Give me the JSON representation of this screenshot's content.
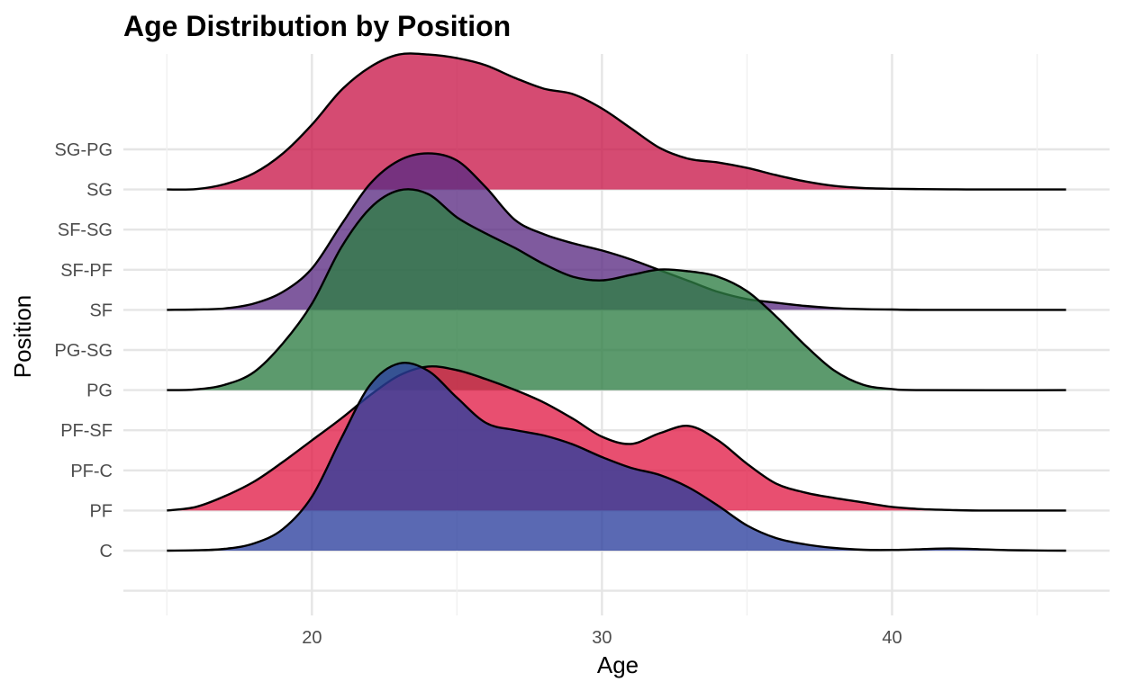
{
  "chart_data": {
    "type": "ridgeline",
    "title": "Age Distribution by Position",
    "xlabel": "Age",
    "ylabel": "Position",
    "xlim": [
      13.5,
      47.5
    ],
    "x_ticks": [
      20,
      30,
      40
    ],
    "x_tick_labels": [
      "20",
      "30",
      "40"
    ],
    "categories": [
      "C",
      "PF",
      "PF-C",
      "PF-SF",
      "PG",
      "PG-SG",
      "SF",
      "SF-PF",
      "SF-SG",
      "SG",
      "SG-PG"
    ],
    "grid": true,
    "series": [
      {
        "category": "SG",
        "color": "#C9184A",
        "density": [
          [
            15,
            0
          ],
          [
            16,
            0.002
          ],
          [
            17,
            0.03
          ],
          [
            18,
            0.09
          ],
          [
            19,
            0.2
          ],
          [
            20,
            0.36
          ],
          [
            21,
            0.55
          ],
          [
            22,
            0.68
          ],
          [
            23,
            0.75
          ],
          [
            24,
            0.75
          ],
          [
            25,
            0.73
          ],
          [
            26,
            0.69
          ],
          [
            27,
            0.62
          ],
          [
            28,
            0.56
          ],
          [
            29,
            0.53
          ],
          [
            30,
            0.45
          ],
          [
            31,
            0.34
          ],
          [
            32,
            0.23
          ],
          [
            33,
            0.17
          ],
          [
            34,
            0.15
          ],
          [
            35,
            0.12
          ],
          [
            36,
            0.08
          ],
          [
            37,
            0.045
          ],
          [
            38,
            0.02
          ],
          [
            39,
            0.008
          ],
          [
            40,
            0.004
          ],
          [
            41,
            0.002
          ],
          [
            42,
            0.001
          ],
          [
            43,
            0
          ],
          [
            46,
            0
          ]
        ]
      },
      {
        "category": "SF",
        "color": "#5B2C83",
        "density": [
          [
            15,
            0
          ],
          [
            16,
            0.002
          ],
          [
            17,
            0.008
          ],
          [
            18,
            0.035
          ],
          [
            19,
            0.1
          ],
          [
            20,
            0.23
          ],
          [
            21,
            0.47
          ],
          [
            22,
            0.7
          ],
          [
            23,
            0.83
          ],
          [
            24,
            0.87
          ],
          [
            25,
            0.83
          ],
          [
            26,
            0.68
          ],
          [
            27,
            0.5
          ],
          [
            28,
            0.42
          ],
          [
            29,
            0.37
          ],
          [
            30,
            0.33
          ],
          [
            31,
            0.28
          ],
          [
            32,
            0.22
          ],
          [
            33,
            0.16
          ],
          [
            34,
            0.1
          ],
          [
            35,
            0.06
          ],
          [
            36,
            0.04
          ],
          [
            37,
            0.022
          ],
          [
            38,
            0.01
          ],
          [
            39,
            0.004
          ],
          [
            40,
            0.002
          ],
          [
            41,
            0
          ],
          [
            46,
            0
          ]
        ]
      },
      {
        "category": "PG",
        "color": "#2E7D44",
        "density": [
          [
            15,
            0
          ],
          [
            16,
            0.004
          ],
          [
            17,
            0.03
          ],
          [
            18,
            0.1
          ],
          [
            19,
            0.26
          ],
          [
            20,
            0.48
          ],
          [
            21,
            0.79
          ],
          [
            22,
            1.01
          ],
          [
            23,
            1.11
          ],
          [
            24,
            1.09
          ],
          [
            25,
            0.96
          ],
          [
            26,
            0.87
          ],
          [
            27,
            0.79
          ],
          [
            28,
            0.7
          ],
          [
            29,
            0.63
          ],
          [
            30,
            0.61
          ],
          [
            31,
            0.64
          ],
          [
            32,
            0.67
          ],
          [
            33,
            0.66
          ],
          [
            34,
            0.63
          ],
          [
            35,
            0.55
          ],
          [
            36,
            0.41
          ],
          [
            37,
            0.25
          ],
          [
            38,
            0.11
          ],
          [
            39,
            0.03
          ],
          [
            40,
            0.006
          ],
          [
            41,
            0
          ],
          [
            46,
            0
          ]
        ]
      },
      {
        "category": "PF",
        "color": "#E11D48",
        "density": [
          [
            15,
            0
          ],
          [
            16,
            0.02
          ],
          [
            17,
            0.08
          ],
          [
            18,
            0.16
          ],
          [
            19,
            0.27
          ],
          [
            20,
            0.39
          ],
          [
            21,
            0.51
          ],
          [
            22,
            0.64
          ],
          [
            23,
            0.75
          ],
          [
            24,
            0.8
          ],
          [
            25,
            0.78
          ],
          [
            26,
            0.73
          ],
          [
            27,
            0.67
          ],
          [
            28,
            0.6
          ],
          [
            29,
            0.51
          ],
          [
            30,
            0.41
          ],
          [
            31,
            0.37
          ],
          [
            32,
            0.43
          ],
          [
            33,
            0.47
          ],
          [
            34,
            0.39
          ],
          [
            35,
            0.26
          ],
          [
            36,
            0.15
          ],
          [
            37,
            0.1
          ],
          [
            38,
            0.07
          ],
          [
            39,
            0.045
          ],
          [
            40,
            0.02
          ],
          [
            41,
            0.008
          ],
          [
            42,
            0.003
          ],
          [
            43,
            0
          ],
          [
            46,
            0
          ]
        ]
      },
      {
        "category": "C",
        "color": "#2B3F9E",
        "density": [
          [
            15,
            0
          ],
          [
            16,
            0.002
          ],
          [
            17,
            0.01
          ],
          [
            18,
            0.04
          ],
          [
            19,
            0.12
          ],
          [
            20,
            0.3
          ],
          [
            21,
            0.62
          ],
          [
            22,
            0.92
          ],
          [
            23,
            1.04
          ],
          [
            24,
            1.0
          ],
          [
            25,
            0.85
          ],
          [
            26,
            0.71
          ],
          [
            27,
            0.67
          ],
          [
            28,
            0.64
          ],
          [
            29,
            0.59
          ],
          [
            30,
            0.52
          ],
          [
            31,
            0.46
          ],
          [
            32,
            0.42
          ],
          [
            33,
            0.35
          ],
          [
            34,
            0.25
          ],
          [
            35,
            0.14
          ],
          [
            36,
            0.07
          ],
          [
            37,
            0.035
          ],
          [
            38,
            0.015
          ],
          [
            39,
            0.005
          ],
          [
            40,
            0.004
          ],
          [
            41,
            0.008
          ],
          [
            42,
            0.012
          ],
          [
            43,
            0.008
          ],
          [
            44,
            0.003
          ],
          [
            45,
            0.001
          ],
          [
            46,
            0
          ]
        ]
      }
    ]
  }
}
